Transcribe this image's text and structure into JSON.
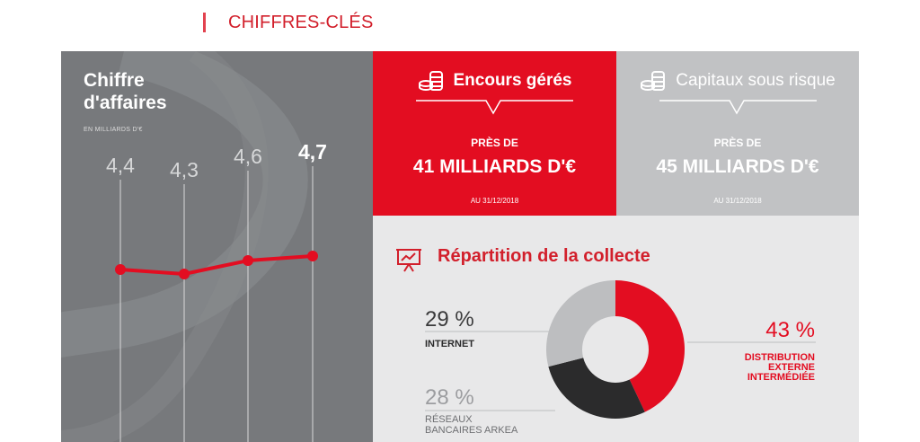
{
  "section": {
    "title": "CHIFFRES-CLÉS"
  },
  "revenue": {
    "title": "Chiffre d'affaires",
    "unit": "EN MILLIARDS D'€"
  },
  "encours": {
    "title": "Encours gérés",
    "pre": "PRÈS DE",
    "value": "41 MILLIARDS D'€",
    "date": "AU 31/12/2018",
    "color": "#e30d21"
  },
  "capitaux": {
    "title": "Capitaux sous risque",
    "pre": "PRÈS DE",
    "value": "45 MILLIARDS D'€",
    "date": "AU 31/12/2018",
    "color": "#c1c2c4"
  },
  "collecte": {
    "title": "Répartition de la collecte",
    "accent": "#d21f2b"
  },
  "chart_data": [
    {
      "type": "line",
      "title": "Chiffre d'affaires",
      "ylabel": "EN MILLIARDS D'€",
      "labels": [
        "4,4",
        "4,3",
        "4,6",
        "4,7"
      ],
      "values": [
        4.4,
        4.3,
        4.6,
        4.7
      ],
      "ylim": [
        4.0,
        5.0
      ],
      "highlight_last": true,
      "color": "#e30d21"
    },
    {
      "type": "pie",
      "title": "Répartition de la collecte",
      "slices": [
        {
          "label": "DISTRIBUTION EXTERNE INTERMÉDIÉE",
          "value": 43,
          "display": "43 %",
          "color": "#e30d21"
        },
        {
          "label": "RÉSEAUX BANCAIRES ARKEA",
          "value": 28,
          "display": "28 %",
          "color": "#2b2b2c"
        },
        {
          "label": "INTERNET",
          "value": 29,
          "display": "29 %",
          "color": "#bdbec0"
        }
      ]
    }
  ]
}
